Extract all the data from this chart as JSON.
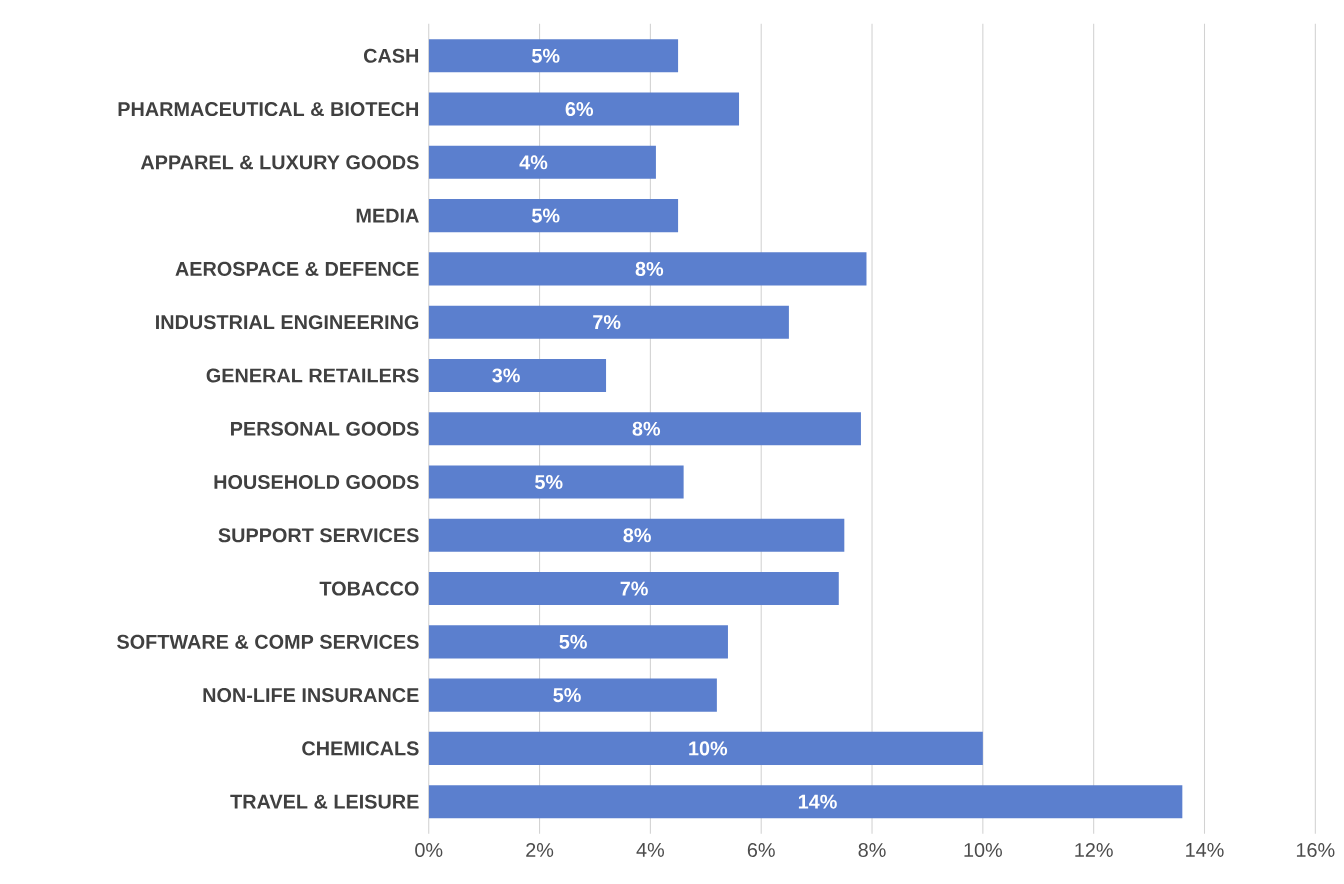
{
  "chart_data": {
    "type": "bar",
    "orientation": "horizontal",
    "categories": [
      "CASH",
      "PHARMACEUTICAL & BIOTECH",
      "APPAREL & LUXURY GOODS",
      "MEDIA",
      "AEROSPACE & DEFENCE",
      "INDUSTRIAL ENGINEERING",
      "GENERAL RETAILERS",
      "PERSONAL GOODS",
      "HOUSEHOLD GOODS",
      "SUPPORT SERVICES",
      "TOBACCO",
      "SOFTWARE & COMP SERVICES",
      "NON-LIFE INSURANCE",
      "CHEMICALS",
      "TRAVEL & LEISURE"
    ],
    "values": [
      4.5,
      5.6,
      4.1,
      4.5,
      7.9,
      6.5,
      3.2,
      7.8,
      4.6,
      7.5,
      7.4,
      5.4,
      5.2,
      10.0,
      13.6
    ],
    "value_labels": [
      "5%",
      "6%",
      "4%",
      "5%",
      "8%",
      "7%",
      "3%",
      "8%",
      "5%",
      "8%",
      "7%",
      "5%",
      "5%",
      "10%",
      "14%"
    ],
    "color": "#5b7fce",
    "xlim": [
      0,
      16
    ],
    "xticks": [
      {
        "value": 0,
        "label": "0%"
      },
      {
        "value": 2,
        "label": "2%"
      },
      {
        "value": 4,
        "label": "4%"
      },
      {
        "value": 6,
        "label": "6%"
      },
      {
        "value": 8,
        "label": "8%"
      },
      {
        "value": 10,
        "label": "10%"
      },
      {
        "value": 12,
        "label": "12%"
      },
      {
        "value": 14,
        "label": "14%"
      },
      {
        "value": 16,
        "label": "16%"
      }
    ],
    "grid": "x"
  }
}
